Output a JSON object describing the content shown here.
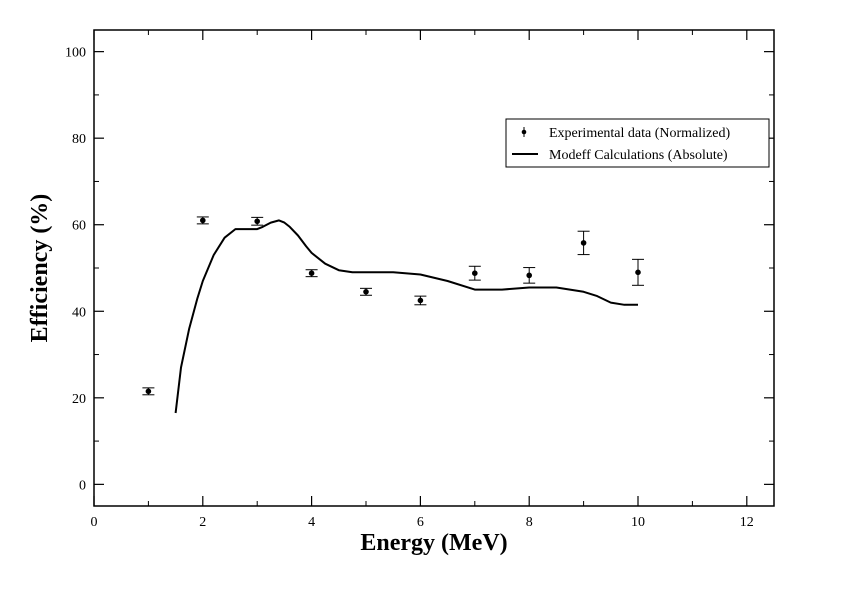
{
  "chart_data": {
    "type": "scatter",
    "title": "",
    "xlabel": "Energy (MeV)",
    "ylabel": "Efficiency (%)",
    "xlim": [
      0,
      12.5
    ],
    "ylim": [
      -5,
      105
    ],
    "x_major_ticks": [
      0,
      2,
      4,
      6,
      8,
      10,
      12
    ],
    "x_minor_ticks": [
      1,
      3,
      5,
      7,
      9,
      11
    ],
    "y_major_ticks": [
      0,
      20,
      40,
      60,
      80,
      100
    ],
    "y_minor_ticks": [
      10,
      30,
      50,
      70,
      90
    ],
    "grid": false,
    "legend_position": "top-right",
    "series": [
      {
        "name": "Experimental data (Normalized)",
        "kind": "points-with-errorbars",
        "color": "#000000",
        "points": [
          {
            "x": 1,
            "y": 21.5,
            "err": 0.8
          },
          {
            "x": 2,
            "y": 61.0,
            "err": 0.8
          },
          {
            "x": 3,
            "y": 60.8,
            "err": 0.9
          },
          {
            "x": 4,
            "y": 48.8,
            "err": 0.8
          },
          {
            "x": 5,
            "y": 44.5,
            "err": 0.8
          },
          {
            "x": 6,
            "y": 42.5,
            "err": 1.0
          },
          {
            "x": 7,
            "y": 48.8,
            "err": 1.6
          },
          {
            "x": 8,
            "y": 48.3,
            "err": 1.8
          },
          {
            "x": 9,
            "y": 55.8,
            "err": 2.7
          },
          {
            "x": 10,
            "y": 49.0,
            "err": 3.0
          }
        ]
      },
      {
        "name": "Modeff Calculations (Absolute)",
        "kind": "line",
        "color": "#000000",
        "x": [
          1.5,
          1.6,
          1.75,
          1.9,
          2.0,
          2.2,
          2.4,
          2.6,
          2.75,
          2.9,
          3.0,
          3.1,
          3.25,
          3.4,
          3.5,
          3.6,
          3.75,
          3.9,
          4.0,
          4.25,
          4.5,
          4.75,
          5.0,
          5.5,
          6.0,
          6.5,
          7.0,
          7.5,
          8.0,
          8.5,
          9.0,
          9.25,
          9.5,
          9.75,
          10.0
        ],
        "y": [
          16.5,
          27,
          36,
          43,
          47,
          53,
          57,
          59,
          59,
          59,
          59,
          59.5,
          60.5,
          61,
          60.5,
          59.5,
          57.5,
          55,
          53.5,
          51,
          49.5,
          49,
          49,
          49,
          48.5,
          47,
          45,
          45,
          45.5,
          45.5,
          44.5,
          43.5,
          42,
          41.5,
          41.5
        ]
      }
    ]
  }
}
